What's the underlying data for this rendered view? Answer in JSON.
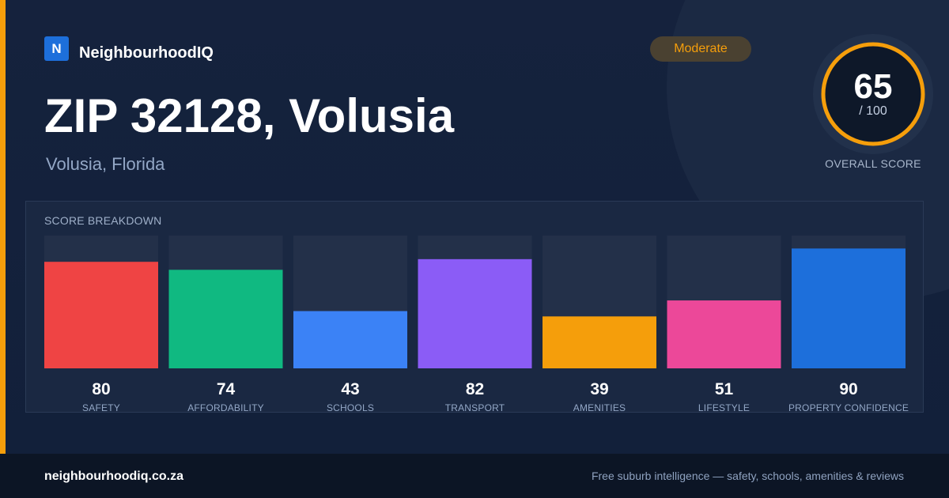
{
  "brand": {
    "logo_letter": "N",
    "name": "NeighbourhoodIQ",
    "accent_color": "#f59e0b",
    "logo_color": "#1d6fdb"
  },
  "header": {
    "title": "ZIP 32128, Volusia",
    "subtitle": "Volusia, Florida"
  },
  "rating": {
    "badge_label": "Moderate"
  },
  "overall": {
    "score": 65,
    "score_text": "65",
    "max_text": "/ 100",
    "caption": "OVERALL SCORE"
  },
  "breakdown": {
    "title": "SCORE BREAKDOWN"
  },
  "chart_data": {
    "type": "bar",
    "categories": [
      "SAFETY",
      "AFFORDABILITY",
      "SCHOOLS",
      "TRANSPORT",
      "AMENITIES",
      "LIFESTYLE",
      "PROPERTY CONFIDENCE"
    ],
    "values": [
      80,
      74,
      43,
      82,
      39,
      51,
      90
    ],
    "colors": [
      "#ef4444",
      "#10b981",
      "#3b82f6",
      "#8b5cf6",
      "#f59e0b",
      "#ec4899",
      "#1d6fdb"
    ],
    "ylim": [
      0,
      100
    ],
    "grid": false,
    "legend": "none"
  },
  "footer": {
    "url": "neighbourhoodiq.co.za",
    "tagline": "Free suburb intelligence — safety, schools, amenities & reviews"
  }
}
